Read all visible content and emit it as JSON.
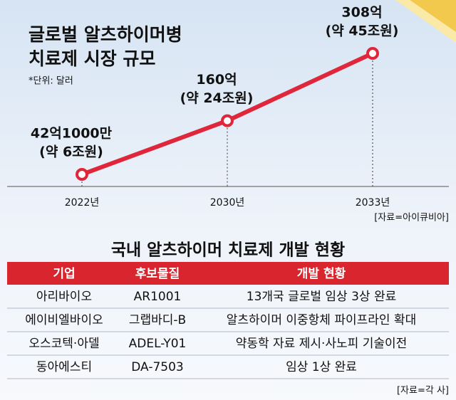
{
  "chart_data": {
    "type": "line",
    "title": [
      "글로벌 알츠하이머병",
      "치료제 시장 규모"
    ],
    "unit_note": "*단위: 달러",
    "categories": [
      "2022년",
      "2030년",
      "2033년"
    ],
    "values": [
      42.1,
      160,
      308
    ],
    "value_labels": [
      "42억1000만",
      "160억",
      "308억"
    ],
    "value_notes": [
      "(약 6조원)",
      "(약 24조원)",
      "(약 45조원)"
    ],
    "color": "#e0263a",
    "source": "[자료=아이큐비아]"
  },
  "table": {
    "title": "국내 알츠하이머 치료제 개발 현황",
    "header": [
      "기업",
      "후보물질",
      "개발 현황"
    ],
    "rows": [
      [
        "아리바이오",
        "AR1001",
        "13개국 글로벌 임상 3상 완료"
      ],
      [
        "에이비엘바이오",
        "그랩바디-B",
        "알츠하이머 이중항체 파이프라인 확대"
      ],
      [
        "오스코텍·아델",
        "ADEL-Y01",
        "약동학 자료 제시·사노피 기술이전"
      ],
      [
        "동아에스티",
        "DA-7503",
        "임상 1상 완료"
      ]
    ],
    "source": "[자료=각 사]"
  }
}
